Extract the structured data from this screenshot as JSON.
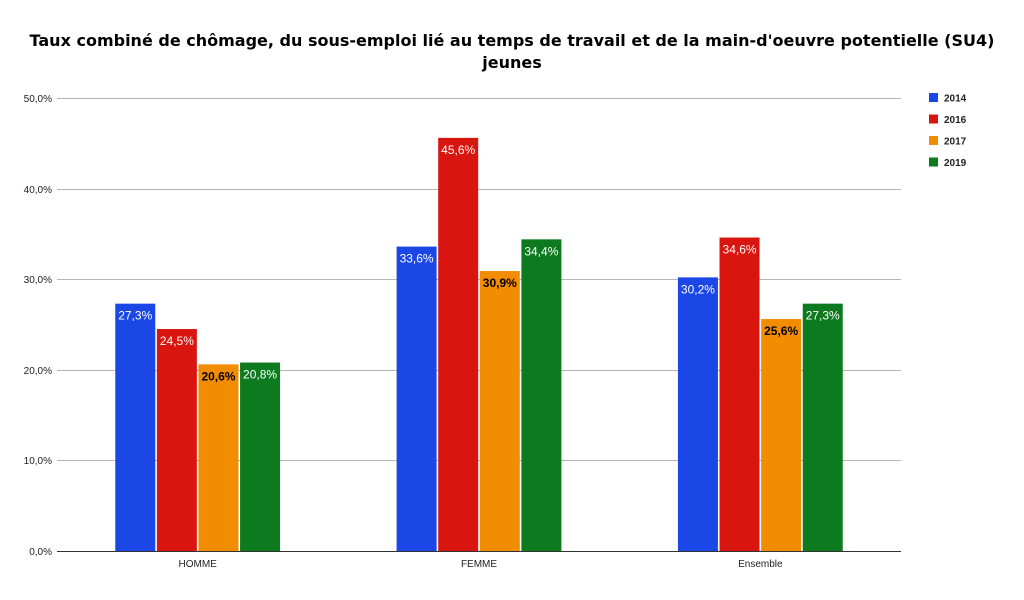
{
  "chart_data": {
    "type": "bar",
    "title_line1": "Taux combiné de chômage, du sous-emploi lié au temps de travail et de la main-d'oeuvre potentielle (SU4)",
    "title_line2": "jeunes",
    "categories": [
      "HOMME",
      "FEMME",
      "Ensemble"
    ],
    "series": [
      {
        "name": "2014",
        "color": "#1b47e6",
        "label_color": "#ffffff",
        "values": [
          27.3,
          33.6,
          30.2
        ],
        "labels": [
          "27,3%",
          "33,6%",
          "30,2%"
        ]
      },
      {
        "name": "2016",
        "color": "#d8160f",
        "label_color": "#ffffff",
        "values": [
          24.5,
          45.6,
          34.6
        ],
        "labels": [
          "24,5%",
          "45,6%",
          "34,6%"
        ]
      },
      {
        "name": "2017",
        "color": "#f28c00",
        "label_color": "#000000",
        "values": [
          20.6,
          30.9,
          25.6
        ],
        "labels": [
          "20,6%",
          "30,9%",
          "25,6%"
        ]
      },
      {
        "name": "2019",
        "color": "#0d7a1f",
        "label_color": "#ffffff",
        "values": [
          20.8,
          34.4,
          27.3
        ],
        "labels": [
          "20,8%",
          "34,4%",
          "27,3%"
        ]
      }
    ],
    "yticks": [
      0,
      10,
      20,
      30,
      40,
      50
    ],
    "ytick_labels": [
      "0,0%",
      "10,0%",
      "20,0%",
      "30,0%",
      "40,0%",
      "50,0%"
    ],
    "ylim": [
      0,
      50
    ],
    "xlabel": "",
    "ylabel": "",
    "grid": true,
    "legend_position": "right"
  }
}
